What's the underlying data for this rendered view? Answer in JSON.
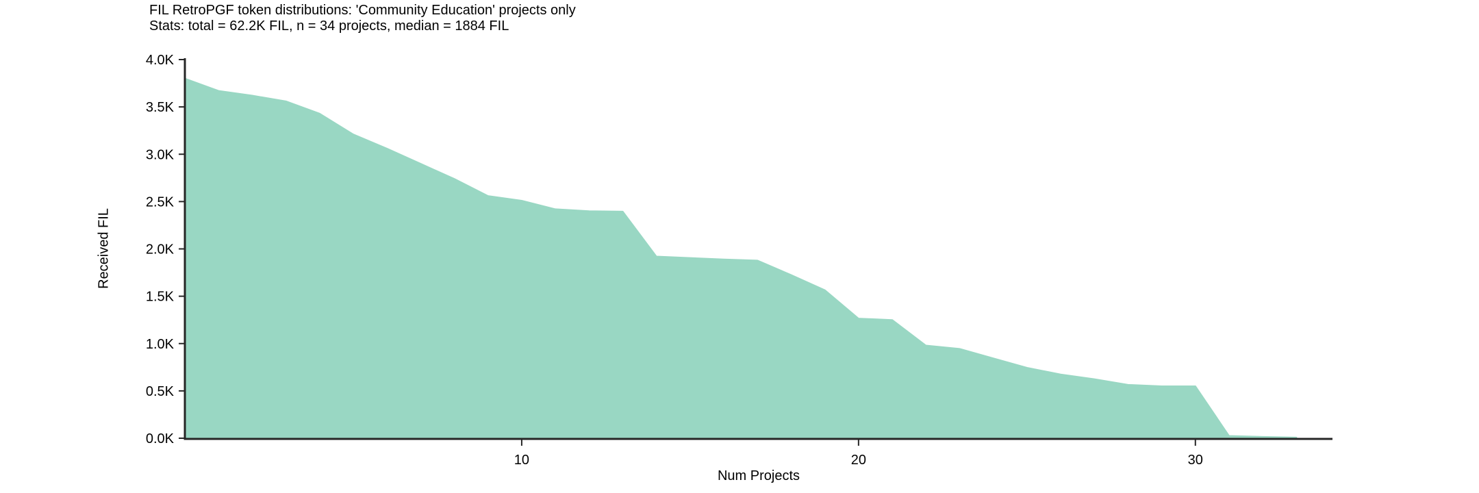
{
  "chart_data": {
    "type": "area",
    "title": "FIL RetroPGF token distributions: 'Community Education' projects only",
    "subtitle": "Stats: total = 62.2K FIL, n = 34 projects, median = 1884 FIL",
    "xlabel": "Num Projects",
    "ylabel": "Received FIL",
    "n_projects": 34,
    "total_fil": "62.2K",
    "median_fil": 1884,
    "values": [
      3800,
      3670,
      3620,
      3560,
      3430,
      3210,
      3060,
      2900,
      2740,
      2560,
      2510,
      2420,
      2400,
      2395,
      1920,
      1905,
      1890,
      1878,
      1725,
      1565,
      1265,
      1250,
      980,
      945,
      845,
      745,
      675,
      625,
      565,
      550,
      550,
      25,
      15,
      8
    ],
    "x_start": 0,
    "xlim": [
      0,
      34.07
    ],
    "ylim": [
      0,
      4000
    ],
    "x_ticks": [
      10,
      20,
      30
    ],
    "y_tick_values": [
      0,
      500,
      1000,
      1500,
      2000,
      2500,
      3000,
      3500,
      4000
    ],
    "y_tick_labels": [
      "0.0K",
      "0.5K",
      "1.0K",
      "1.5K",
      "2.0K",
      "2.5K",
      "3.0K",
      "3.5K",
      "4.0K"
    ],
    "grid": false,
    "legend": "none",
    "fill_color": "#99d7c3",
    "axis_color": "#262626",
    "text_color": "#000000"
  }
}
